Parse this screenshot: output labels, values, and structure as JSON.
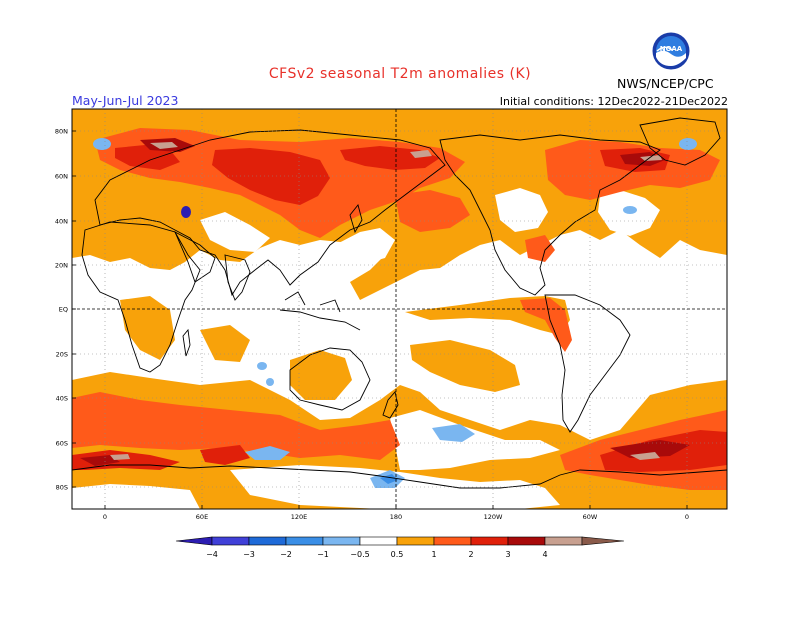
{
  "header": {
    "title": "CFSv2 seasonal T2m anomalies (K)",
    "period": "May-Jun-Jul 2023",
    "initial_conditions": "Initial conditions: 12Dec2022-21Dec2022",
    "agency": "NWS/NCEP/CPC",
    "logo_text": "NOAA"
  },
  "map": {
    "lat_labels": [
      "80N",
      "60N",
      "40N",
      "20N",
      "EQ",
      "20S",
      "40S",
      "60S",
      "80S"
    ],
    "lon_labels": [
      "0",
      "60E",
      "120E",
      "180",
      "120W",
      "60W",
      "0"
    ]
  },
  "legend": {
    "tick_labels": [
      "−4",
      "−3",
      "−2",
      "−1",
      "−0.5",
      "0.5",
      "1",
      "2",
      "3",
      "4"
    ],
    "colors": [
      "#2c1db2",
      "#4040d8",
      "#1e6ad8",
      "#3a8ee6",
      "#7ab6f0",
      "#ffffff",
      "#f8a20a",
      "#ff5a1a",
      "#e0200a",
      "#a80a0a",
      "#c8a090",
      "#8a5a4a"
    ]
  },
  "colors": {
    "orange": "#f8a20a",
    "orange_red": "#ff5a1a",
    "red": "#e0200a",
    "dark_red": "#a80a0a",
    "pink": "#c8a090",
    "light_blue": "#7ab6f0",
    "blue": "#3a8ee6",
    "dark_blue": "#2c1db2",
    "title_red": "#e8312a",
    "period_blue": "#3a3adf"
  }
}
